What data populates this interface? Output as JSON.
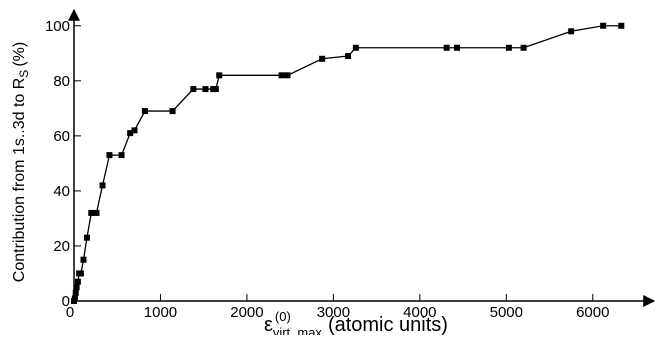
{
  "chart_data": {
    "type": "line",
    "xlabel": {
      "symbol": "ε",
      "superscript": "(0)",
      "subscript": "virt, max",
      "units": "(atomic units)"
    },
    "ylabel": {
      "main": "Contribution from 1s..3d to R",
      "subscript": "S",
      "units": "(%)"
    },
    "xlim": [
      0,
      6500
    ],
    "ylim": [
      0,
      105
    ],
    "xticks": [
      0,
      1000,
      2000,
      3000,
      4000,
      5000,
      6000
    ],
    "xtick_labels": [
      "0",
      "1000",
      "2000",
      "3000",
      "4000",
      "5000",
      "6000"
    ],
    "yticks": [
      0,
      20,
      40,
      60,
      80,
      100
    ],
    "ytick_labels": [
      "0",
      "20",
      "40",
      "60",
      "80",
      "100"
    ],
    "grid": false,
    "marker": "square",
    "series": [
      {
        "x": [
          0,
          10,
          20,
          30,
          45,
          60,
          80,
          110,
          150,
          200,
          260,
          330,
          410,
          550,
          650,
          700,
          820,
          1140,
          1380,
          1520,
          1610,
          1640,
          1680,
          2400,
          2470,
          2870,
          3170,
          3260,
          4310,
          4430,
          5030,
          5200,
          5750,
          6120,
          6330
        ],
        "y": [
          0,
          1,
          3,
          5,
          7,
          10,
          10,
          15,
          23,
          32,
          32,
          42,
          53,
          53,
          61,
          62,
          69,
          69,
          77,
          77,
          77,
          77,
          82,
          82,
          82,
          88,
          89,
          92,
          92,
          92,
          92,
          92,
          98,
          100,
          100
        ]
      }
    ]
  }
}
